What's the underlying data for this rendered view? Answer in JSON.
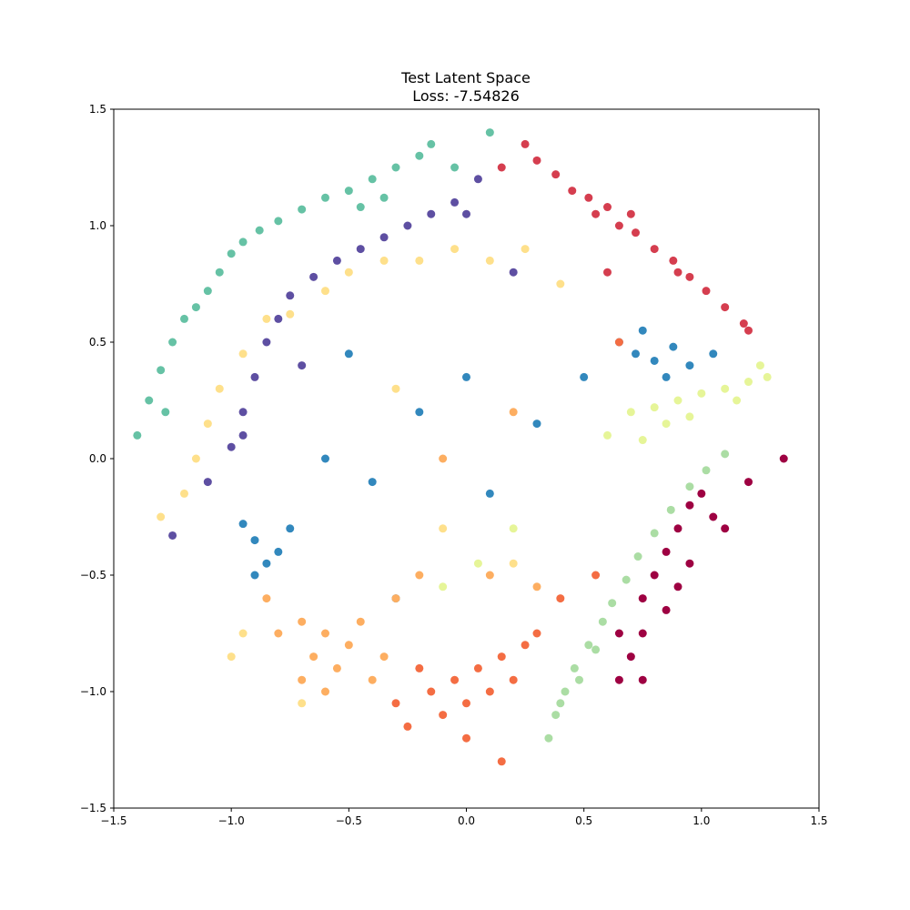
{
  "chart_data": {
    "type": "scatter",
    "title": "Test Latent Space",
    "subtitle": "Loss: -7.54826",
    "xlim": [
      -1.5,
      1.5
    ],
    "ylim": [
      -1.5,
      1.5
    ],
    "xticks": [
      {
        "value": -1.5,
        "label": "−1.5"
      },
      {
        "value": -1.0,
        "label": "−1.0"
      },
      {
        "value": -0.5,
        "label": "−0.5"
      },
      {
        "value": 0.0,
        "label": "0.0"
      },
      0.5,
      {
        "value": 1.0,
        "label": "1.0"
      },
      1.5
    ],
    "yticks": [
      {
        "value": -1.5,
        "label": "−1.5"
      },
      {
        "value": -1.0,
        "label": "−1.0"
      },
      {
        "value": -0.5,
        "label": "−0.5"
      },
      {
        "value": 0.0,
        "label": "0.0"
      },
      0.5,
      {
        "value": 1.0,
        "label": "1.0"
      },
      1.5
    ],
    "series": [
      {
        "color": "#66c2a5",
        "x": [
          -1.4,
          -1.35,
          -1.3,
          -1.25,
          -1.2,
          -1.15,
          -1.1,
          -1.05,
          -1.0,
          -0.95,
          -0.88,
          -0.8,
          -0.7,
          -0.6,
          -0.5,
          -0.4,
          -0.3,
          -0.2,
          -0.15,
          -0.45,
          -0.35,
          -1.28,
          -0.05,
          0.1
        ],
        "y": [
          0.1,
          0.25,
          0.38,
          0.5,
          0.6,
          0.65,
          0.72,
          0.8,
          0.88,
          0.93,
          0.98,
          1.02,
          1.07,
          1.12,
          1.15,
          1.2,
          1.25,
          1.3,
          1.35,
          1.08,
          1.12,
          0.2,
          1.25,
          1.4
        ]
      },
      {
        "color": "#5e4fa2",
        "x": [
          -1.25,
          -1.1,
          -1.0,
          -0.95,
          -0.9,
          -0.85,
          -0.8,
          -0.75,
          -0.65,
          -0.55,
          -0.45,
          -0.35,
          -0.25,
          -0.15,
          -0.05,
          0.0,
          -0.7,
          -0.95,
          0.05,
          0.2
        ],
        "y": [
          -0.33,
          -0.1,
          0.05,
          0.2,
          0.35,
          0.5,
          0.6,
          0.7,
          0.78,
          0.85,
          0.9,
          0.95,
          1.0,
          1.05,
          1.1,
          1.05,
          0.4,
          0.1,
          1.2,
          0.8
        ]
      },
      {
        "color": "#fee08b",
        "x": [
          -1.3,
          -1.2,
          -1.15,
          -1.1,
          -1.05,
          -0.95,
          -0.85,
          -0.75,
          -0.6,
          -0.5,
          -0.35,
          -0.2,
          -0.05,
          0.1,
          0.25,
          -0.95,
          -1.0,
          -0.7,
          -0.1,
          0.2,
          -0.3,
          0.4
        ],
        "y": [
          -0.25,
          -0.15,
          0.0,
          0.15,
          0.3,
          0.45,
          0.6,
          0.62,
          0.72,
          0.8,
          0.85,
          0.85,
          0.9,
          0.85,
          0.9,
          -0.75,
          -0.85,
          -1.05,
          -0.3,
          -0.45,
          0.3,
          0.75
        ]
      },
      {
        "color": "#d53e4f",
        "x": [
          0.25,
          0.3,
          0.38,
          0.45,
          0.52,
          0.6,
          0.65,
          0.72,
          0.8,
          0.88,
          0.95,
          1.02,
          1.1,
          1.18,
          1.2,
          0.7,
          0.55,
          0.9,
          0.15,
          0.6
        ],
        "y": [
          1.35,
          1.28,
          1.22,
          1.15,
          1.12,
          1.08,
          1.0,
          0.97,
          0.9,
          0.85,
          0.78,
          0.72,
          0.65,
          0.58,
          0.55,
          1.05,
          1.05,
          0.8,
          1.25,
          0.8
        ]
      },
      {
        "color": "#3288bd",
        "x": [
          0.65,
          0.72,
          0.8,
          0.88,
          0.95,
          1.05,
          0.75,
          0.85,
          -0.9,
          -0.85,
          -0.8,
          -0.75,
          -0.9,
          -0.95,
          -0.2,
          0.0,
          -0.4,
          0.3,
          -0.6,
          0.1,
          -0.3,
          0.5,
          -0.5
        ],
        "y": [
          0.5,
          0.45,
          0.42,
          0.48,
          0.4,
          0.45,
          0.55,
          0.35,
          -0.35,
          -0.45,
          -0.4,
          -0.3,
          -0.5,
          -0.28,
          0.2,
          0.35,
          -0.1,
          0.15,
          0.0,
          -0.15,
          -0.6,
          0.35,
          0.45
        ]
      },
      {
        "color": "#e6f598",
        "x": [
          0.7,
          0.8,
          0.9,
          1.0,
          1.1,
          1.2,
          1.28,
          0.85,
          0.95,
          1.15,
          1.25,
          0.6,
          0.75,
          0.2,
          -0.1,
          0.05
        ],
        "y": [
          0.2,
          0.22,
          0.25,
          0.28,
          0.3,
          0.33,
          0.35,
          0.15,
          0.18,
          0.25,
          0.4,
          0.1,
          0.08,
          -0.3,
          -0.55,
          -0.45
        ]
      },
      {
        "color": "#abdda4",
        "x": [
          0.35,
          0.38,
          0.42,
          0.46,
          0.52,
          0.58,
          0.62,
          0.68,
          0.73,
          0.8,
          0.87,
          0.95,
          1.02,
          1.1,
          0.4,
          0.48,
          0.55
        ],
        "y": [
          -1.2,
          -1.1,
          -1.0,
          -0.9,
          -0.8,
          -0.7,
          -0.62,
          -0.52,
          -0.42,
          -0.32,
          -0.22,
          -0.12,
          -0.05,
          0.02,
          -1.05,
          -0.95,
          -0.82
        ]
      },
      {
        "color": "#9e0142",
        "x": [
          0.65,
          0.7,
          0.75,
          0.65,
          0.75,
          0.8,
          0.85,
          0.9,
          0.95,
          1.0,
          1.05,
          1.1,
          0.95,
          0.85,
          0.9,
          0.75,
          1.2,
          1.35
        ],
        "y": [
          -0.75,
          -0.85,
          -0.95,
          -0.95,
          -0.6,
          -0.5,
          -0.4,
          -0.3,
          -0.2,
          -0.15,
          -0.25,
          -0.3,
          -0.45,
          -0.65,
          -0.55,
          -0.75,
          -0.1,
          0.0
        ]
      },
      {
        "color": "#f46d43",
        "x": [
          -0.3,
          -0.25,
          -0.15,
          -0.1,
          -0.05,
          0.0,
          0.05,
          0.1,
          0.15,
          0.2,
          0.25,
          0.3,
          0.0,
          0.15,
          -0.2,
          0.4,
          0.55,
          0.65
        ],
        "y": [
          -1.05,
          -1.15,
          -1.0,
          -1.1,
          -0.95,
          -1.05,
          -0.9,
          -1.0,
          -0.85,
          -0.95,
          -0.8,
          -0.75,
          -1.2,
          -1.3,
          -0.9,
          -0.6,
          -0.5,
          0.5
        ]
      },
      {
        "color": "#fdae61",
        "x": [
          -0.8,
          -0.7,
          -0.65,
          -0.6,
          -0.55,
          -0.5,
          -0.45,
          -0.4,
          -0.35,
          -0.7,
          -0.85,
          -0.3,
          -0.2,
          0.1,
          0.3,
          -0.1,
          0.2,
          -0.6
        ],
        "y": [
          -0.75,
          -0.7,
          -0.85,
          -0.75,
          -0.9,
          -0.8,
          -0.7,
          -0.95,
          -0.85,
          -0.95,
          -0.6,
          -0.6,
          -0.5,
          -0.5,
          -0.55,
          0.0,
          0.2,
          -1.0
        ]
      }
    ]
  }
}
